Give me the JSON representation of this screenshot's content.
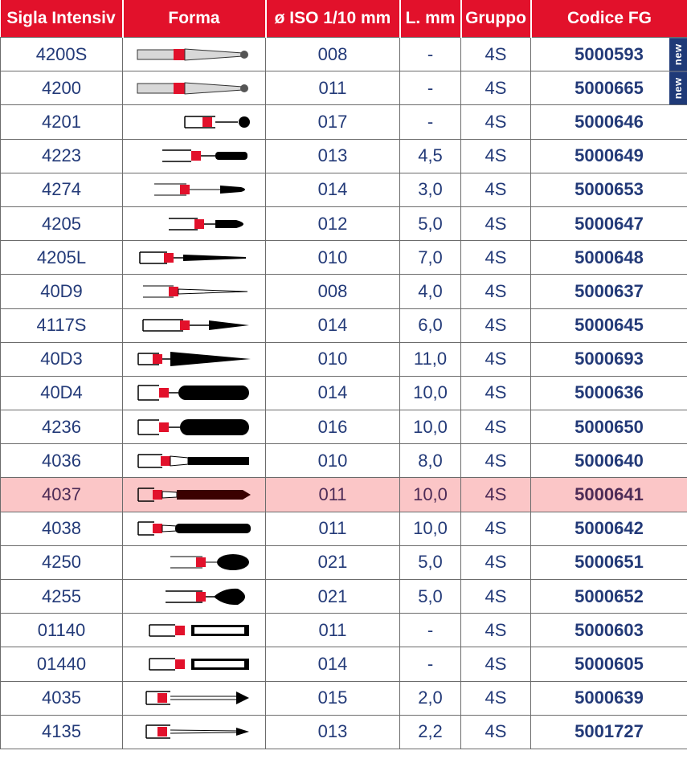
{
  "headers": {
    "sigla": "Sigla Intensiv",
    "forma": "Forma",
    "iso": "ø ISO 1/10 mm",
    "length": "L. mm",
    "gruppo": "Gruppo",
    "codice": "Codice FG"
  },
  "colors": {
    "header_bg": "#e2112b",
    "text": "#233a78",
    "highlight_row": "#fbc6c7",
    "badge": "#1f3a78",
    "shape_marker": "#e2112b"
  },
  "rows": [
    {
      "sigla": "4200S",
      "iso": "008",
      "length": "-",
      "gruppo": "4S",
      "codice": "5000593",
      "shape": "tapered-ball-grey",
      "badge": "new"
    },
    {
      "sigla": "4200",
      "iso": "011",
      "length": "-",
      "gruppo": "4S",
      "codice": "5000665",
      "shape": "tapered-ball-grey",
      "badge": "new"
    },
    {
      "sigla": "4201",
      "iso": "017",
      "length": "-",
      "gruppo": "4S",
      "codice": "5000646",
      "shape": "round-ball"
    },
    {
      "sigla": "4223",
      "iso": "013",
      "length": "4,5",
      "gruppo": "4S",
      "codice": "5000649",
      "shape": "short-cylinder-round"
    },
    {
      "sigla": "4274",
      "iso": "014",
      "length": "3,0",
      "gruppo": "4S",
      "codice": "5000653",
      "shape": "short-flame"
    },
    {
      "sigla": "4205",
      "iso": "012",
      "length": "5,0",
      "gruppo": "4S",
      "codice": "5000647",
      "shape": "bullet"
    },
    {
      "sigla": "4205L",
      "iso": "010",
      "length": "7,0",
      "gruppo": "4S",
      "codice": "5000648",
      "shape": "long-taper"
    },
    {
      "sigla": "40D9",
      "iso": "008",
      "length": "4,0",
      "gruppo": "4S",
      "codice": "5000637",
      "shape": "thin-taper"
    },
    {
      "sigla": "4117S",
      "iso": "014",
      "length": "6,0",
      "gruppo": "4S",
      "codice": "5000645",
      "shape": "cone-point"
    },
    {
      "sigla": "40D3",
      "iso": "010",
      "length": "11,0",
      "gruppo": "4S",
      "codice": "5000693",
      "shape": "long-cone"
    },
    {
      "sigla": "40D4",
      "iso": "014",
      "length": "10,0",
      "gruppo": "4S",
      "codice": "5000636",
      "shape": "rounded-cylinder"
    },
    {
      "sigla": "4236",
      "iso": "016",
      "length": "10,0",
      "gruppo": "4S",
      "codice": "5000650",
      "shape": "rounded-cylinder-wide"
    },
    {
      "sigla": "4036",
      "iso": "010",
      "length": "8,0",
      "gruppo": "4S",
      "codice": "5000640",
      "shape": "flat-cylinder"
    },
    {
      "sigla": "4037",
      "iso": "011",
      "length": "10,0",
      "gruppo": "4S",
      "codice": "5000641",
      "shape": "pointed-cylinder",
      "highlight": true
    },
    {
      "sigla": "4038",
      "iso": "011",
      "length": "10,0",
      "gruppo": "4S",
      "codice": "5000642",
      "shape": "rounded-cylinder-long"
    },
    {
      "sigla": "4250",
      "iso": "021",
      "length": "5,0",
      "gruppo": "4S",
      "codice": "5000651",
      "shape": "egg"
    },
    {
      "sigla": "4255",
      "iso": "021",
      "length": "5,0",
      "gruppo": "4S",
      "codice": "5000652",
      "shape": "pear"
    },
    {
      "sigla": "01140",
      "iso": "011",
      "length": "-",
      "gruppo": "4S",
      "codice": "5000603",
      "shape": "hollow-rect"
    },
    {
      "sigla": "01440",
      "iso": "014",
      "length": "-",
      "gruppo": "4S",
      "codice": "5000605",
      "shape": "hollow-rect"
    },
    {
      "sigla": "4035",
      "iso": "015",
      "length": "2,0",
      "gruppo": "4S",
      "codice": "5000639",
      "shape": "arrow-point"
    },
    {
      "sigla": "4135",
      "iso": "013",
      "length": "2,2",
      "gruppo": "4S",
      "codice": "5001727",
      "shape": "arrow-point-thin"
    }
  ]
}
